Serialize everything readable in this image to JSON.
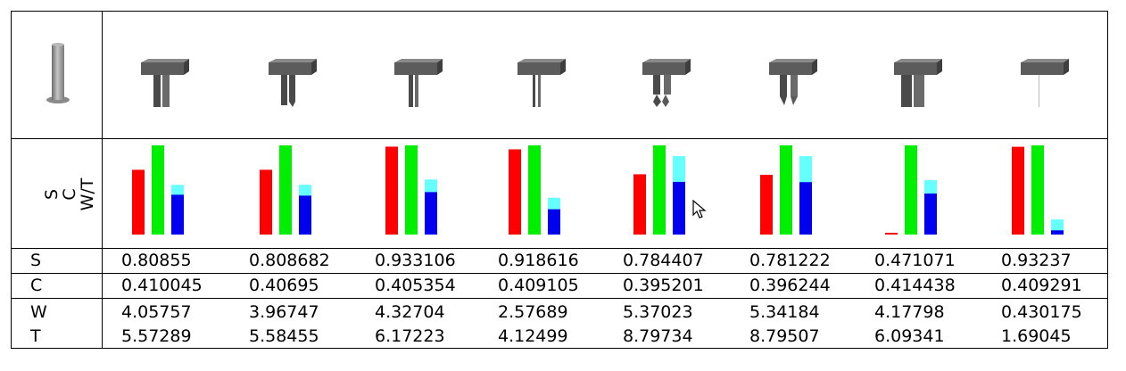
{
  "row_labels": {
    "s": "S",
    "c": "C",
    "w": "W",
    "t": "T"
  },
  "chart_axis_labels": [
    "S",
    "C",
    "W/T"
  ],
  "colors": {
    "s": "#ff0000",
    "c": "#00ee00",
    "w": "#0000ee",
    "t": "#66ffff"
  },
  "columns": [
    {
      "s": "0.80855",
      "c": "0.410045",
      "w": "4.05757",
      "t": "5.57289",
      "shape": "two-legs"
    },
    {
      "s": "0.808682",
      "c": "0.40695",
      "w": "3.96747",
      "t": "5.58455",
      "shape": "split-leg"
    },
    {
      "s": "0.933106",
      "c": "0.405354",
      "w": "4.32704",
      "t": "6.17223",
      "shape": "thin-legs"
    },
    {
      "s": "0.918616",
      "c": "0.409105",
      "w": "2.57689",
      "t": "4.12499",
      "shape": "very-thin-legs"
    },
    {
      "s": "0.784407",
      "c": "0.395201",
      "w": "5.37023",
      "t": "8.79734",
      "shape": "gripper-diamond"
    },
    {
      "s": "0.781222",
      "c": "0.396244",
      "w": "5.34184",
      "t": "8.79507",
      "shape": "gripper-claw"
    },
    {
      "s": "0.471071",
      "c": "0.414438",
      "w": "4.17798",
      "t": "6.09341",
      "shape": "wide-legs"
    },
    {
      "s": "0.93237",
      "c": "0.409291",
      "w": "0.430175",
      "t": "1.69045",
      "shape": "single-pin"
    }
  ],
  "reference_object": "cylinder",
  "cursor_icon": "mouse-pointer-icon"
}
